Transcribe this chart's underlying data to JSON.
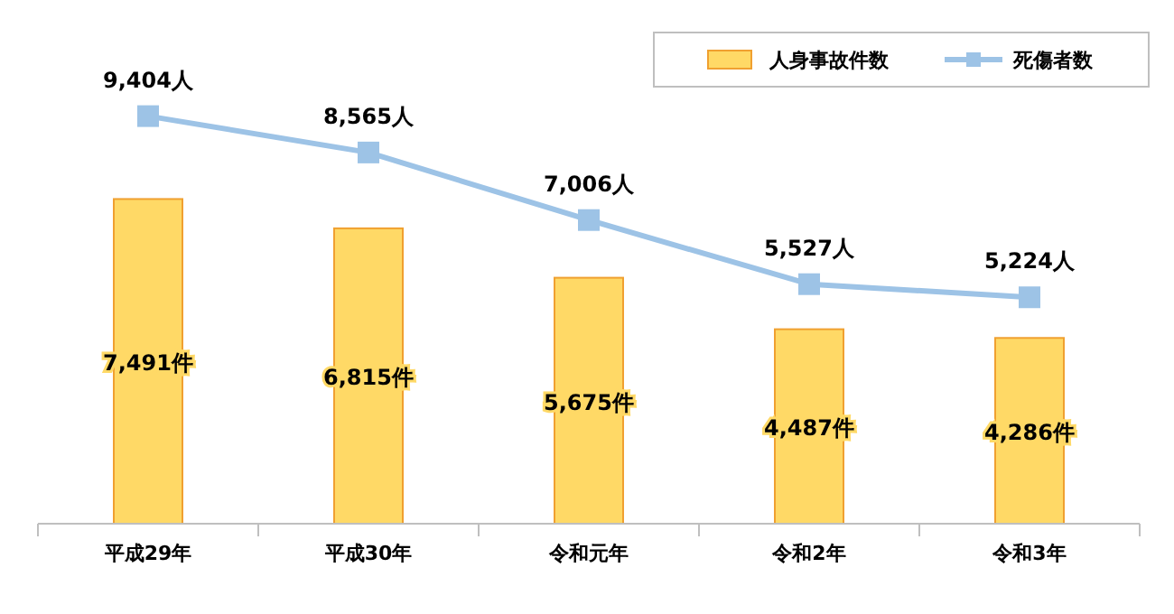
{
  "chart_data": {
    "type": "bar",
    "categories": [
      "平成29年",
      "平成30年",
      "令和元年",
      "令和2年",
      "令和3年"
    ],
    "series": [
      {
        "name": "人身事故件数",
        "color": "#ffd966",
        "values": [
          7491,
          6815,
          5675,
          4487,
          4286
        ],
        "value_labels": [
          "7,491件",
          "6,815件",
          "5,675件",
          "4,487件",
          "4,286件"
        ]
      },
      {
        "name": "死傷者数",
        "type": "line",
        "color": "#9dc3e6",
        "values": [
          9404,
          8565,
          7006,
          5527,
          5224
        ],
        "value_labels": [
          "9,404人",
          "8,565人",
          "7,006人",
          "5,527人",
          "5,224人"
        ]
      }
    ],
    "ylim": [
      0,
      11000
    ],
    "tick_labels": "x",
    "grid": false,
    "legend": "top right",
    "marker": "square",
    "line_style": "solid"
  }
}
